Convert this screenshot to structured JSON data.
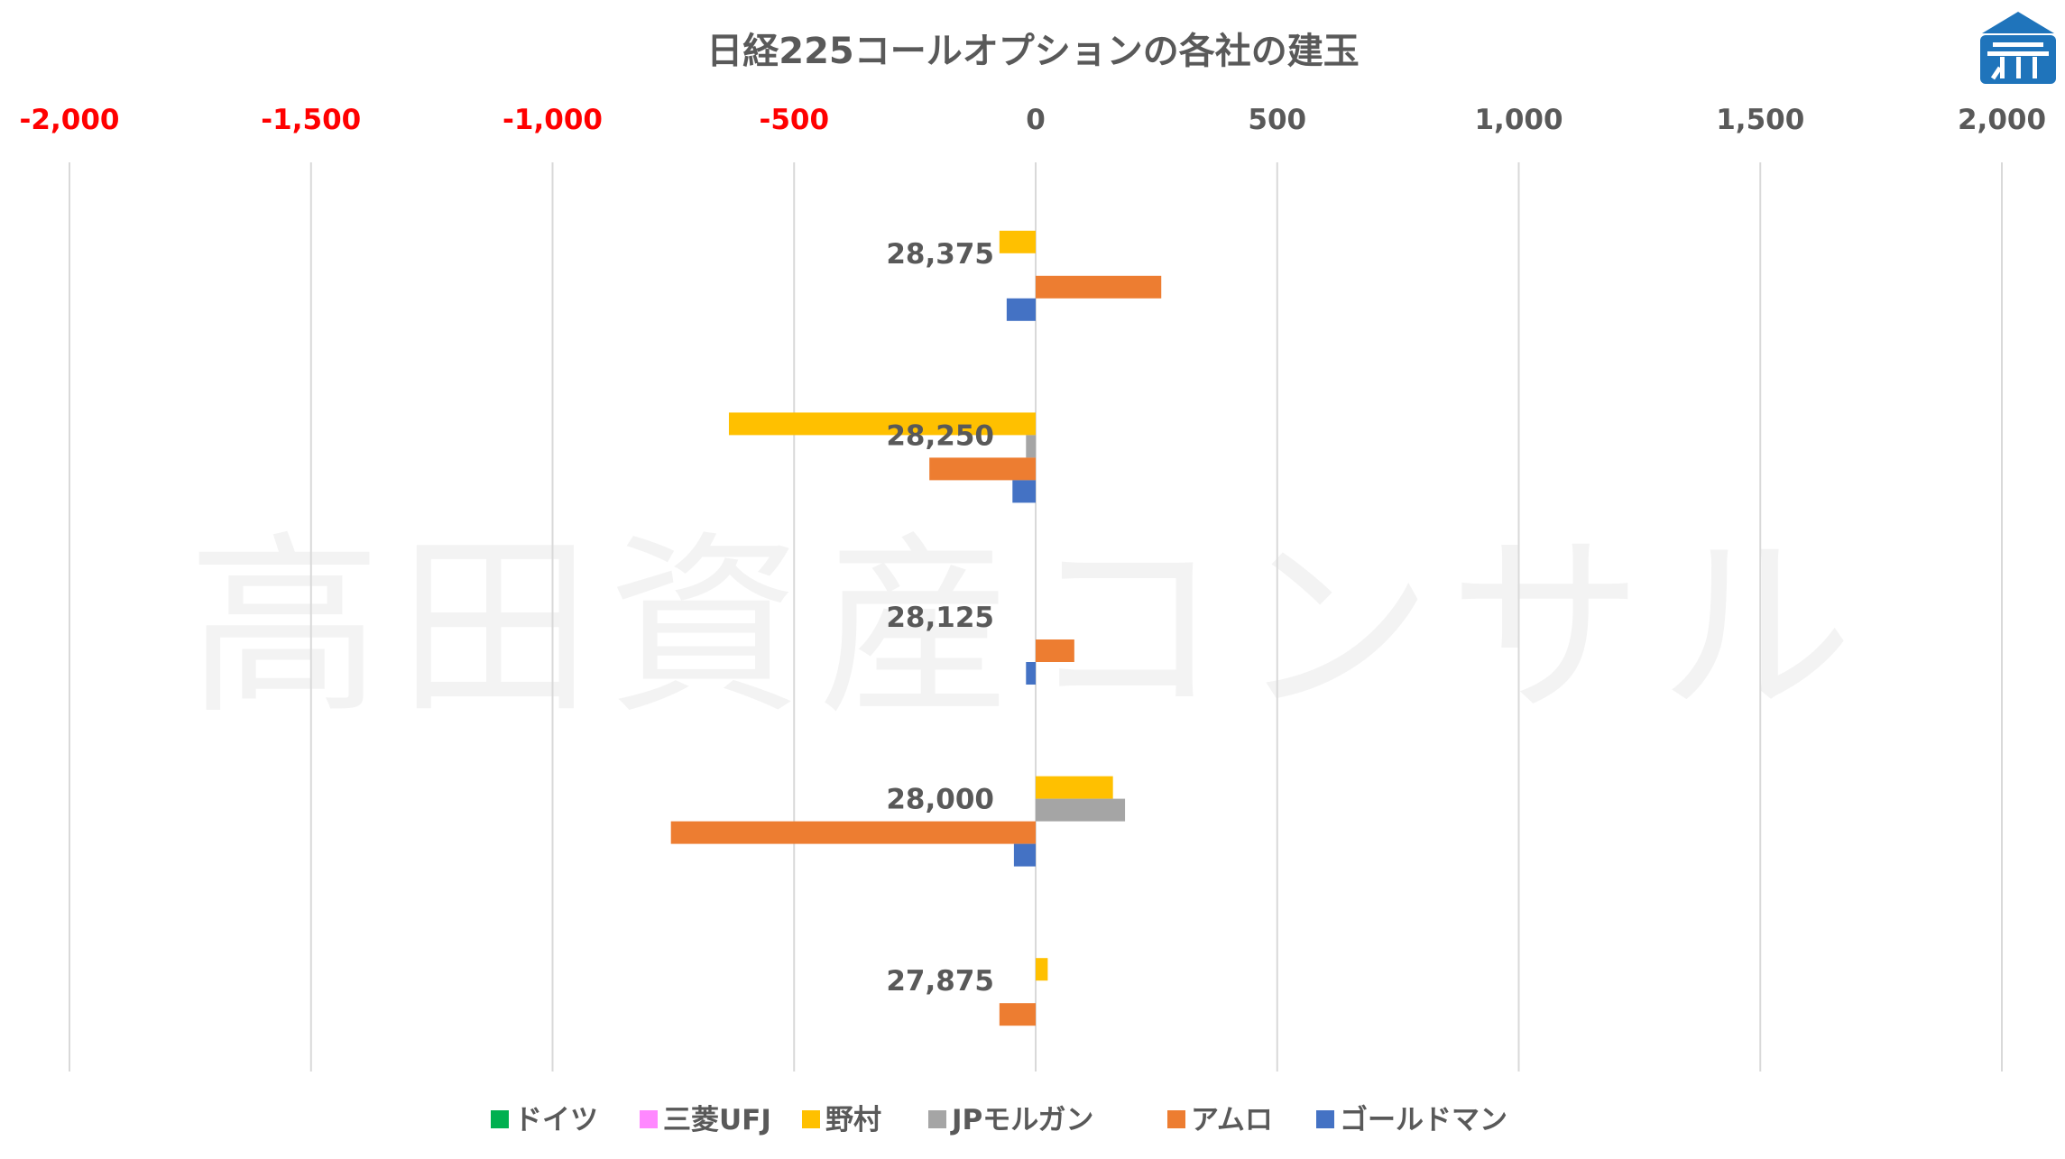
{
  "chart_data": {
    "type": "bar",
    "orientation": "horizontal",
    "title": "日経225コールオプションの各社の建玉",
    "watermark": "高田資産コンサル",
    "logo": "building-logo",
    "xlim": [
      -2000,
      2000
    ],
    "x_ticks": [
      {
        "value": -2000,
        "label": "-2,000",
        "color": "#ff0000"
      },
      {
        "value": -1500,
        "label": "-1,500",
        "color": "#ff0000"
      },
      {
        "value": -1000,
        "label": "-1,000",
        "color": "#ff0000"
      },
      {
        "value": -500,
        "label": "-500",
        "color": "#ff0000"
      },
      {
        "value": 0,
        "label": "0",
        "color": "#595959"
      },
      {
        "value": 500,
        "label": "500",
        "color": "#595959"
      },
      {
        "value": 1000,
        "label": "1,000",
        "color": "#595959"
      },
      {
        "value": 1500,
        "label": "1,500",
        "color": "#595959"
      },
      {
        "value": 2000,
        "label": "2,000",
        "color": "#595959"
      }
    ],
    "categories": [
      "28,375",
      "28,250",
      "28,125",
      "28,000",
      "27,875"
    ],
    "series": [
      {
        "name": "ドイツ",
        "color": "#00b050",
        "values": [
          0,
          0,
          0,
          0,
          0
        ]
      },
      {
        "name": "三菱UFJ",
        "color": "#ff88ff",
        "values": [
          0,
          0,
          0,
          0,
          0
        ]
      },
      {
        "name": "野村",
        "color": "#ffc000",
        "values": [
          -75,
          -635,
          0,
          160,
          25
        ]
      },
      {
        "name": "JPモルガン",
        "color": "#a5a5a5",
        "values": [
          0,
          -20,
          0,
          185,
          0
        ]
      },
      {
        "name": "アムロ",
        "color": "#ed7d31",
        "values": [
          260,
          -220,
          80,
          -755,
          -75
        ]
      },
      {
        "name": "ゴールドマン",
        "color": "#4472c4",
        "values": [
          -60,
          -48,
          -20,
          -45,
          0
        ]
      }
    ],
    "legend_position": "bottom",
    "grid": true
  }
}
